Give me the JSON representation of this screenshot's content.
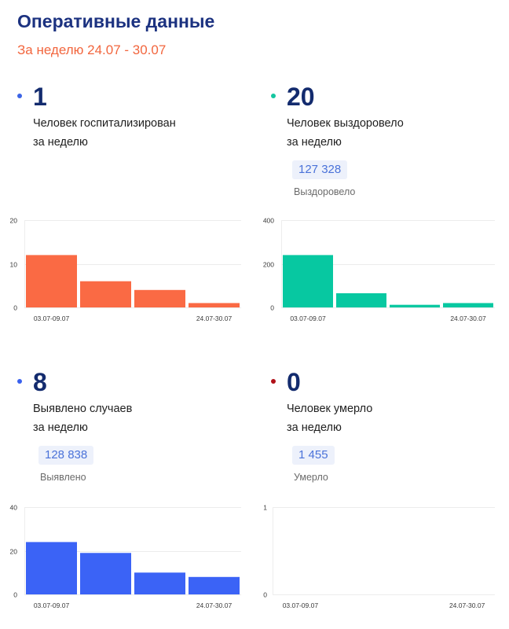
{
  "header": {
    "title": "Оперативные данные",
    "subtitle": "За неделю 24.07 - 30.07"
  },
  "colors": {
    "title": "#1c3280",
    "subtitle": "#f2663e",
    "value": "#132b6e",
    "badge_bg": "#edf1fb",
    "badge_text": "#4a72d9"
  },
  "cards": [
    {
      "dot_color": "#3c64e6",
      "value": "1",
      "caption_line1": "Человек госпитализирован",
      "caption_line2": "за неделю"
    },
    {
      "dot_color": "#14c6a0",
      "value": "20",
      "caption_line1": "Человек выздоровело",
      "caption_line2": "за неделю",
      "total_value": "127 328",
      "total_label": "Выздоровело"
    },
    {
      "dot_color": "#3a61ee",
      "value": "8",
      "caption_line1": "Выявлено случаев",
      "caption_line2": "за неделю",
      "total_value": "128 838",
      "total_label": "Выявлено"
    },
    {
      "dot_color": "#b01018",
      "value": "0",
      "caption_line1": "Человек умерло",
      "caption_line2": "за неделю",
      "total_value": "1 455",
      "total_label": "Умерло"
    }
  ],
  "chart_data": [
    {
      "type": "bar",
      "categories": [
        "03.07-09.07",
        "",
        "",
        "24.07-30.07"
      ],
      "values": [
        12,
        6,
        4,
        1
      ],
      "ylim": [
        0,
        20
      ],
      "yticks": [
        0,
        10,
        20
      ],
      "grid": true,
      "color": "#fa6a44"
    },
    {
      "type": "bar",
      "categories": [
        "03.07-09.07",
        "",
        "",
        "24.07-30.07"
      ],
      "values": [
        240,
        65,
        12,
        20
      ],
      "ylim": [
        0,
        400
      ],
      "yticks": [
        0,
        200,
        400
      ],
      "grid": true,
      "color": "#07c8a1"
    },
    {
      "type": "bar",
      "categories": [
        "03.07-09.07",
        "",
        "",
        "24.07-30.07"
      ],
      "values": [
        24,
        19,
        10,
        8
      ],
      "ylim": [
        0,
        40
      ],
      "yticks": [
        0,
        20,
        40
      ],
      "grid": true,
      "color": "#3b63f6"
    },
    {
      "type": "bar",
      "categories": [
        "03.07-09.07",
        "",
        "",
        "24.07-30.07"
      ],
      "values": [
        0,
        0,
        0,
        0
      ],
      "ylim": [
        0,
        1
      ],
      "yticks": [
        0,
        1
      ],
      "grid": true
    }
  ]
}
